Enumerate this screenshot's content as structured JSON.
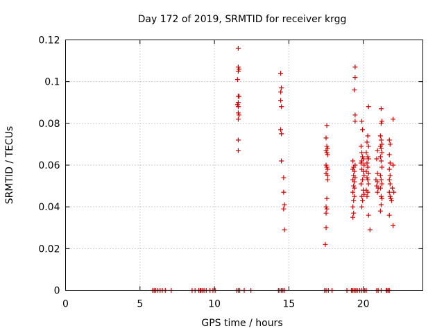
{
  "chart_data": {
    "type": "scatter",
    "title": "Day 172 of 2019, SRMTID for receiver krgg",
    "xlabel": "GPS time / hours",
    "ylabel": "SRMTID / TECUs",
    "xlim": [
      0,
      24
    ],
    "ylim": [
      0,
      0.12
    ],
    "xticks": [
      0,
      5,
      10,
      15,
      20
    ],
    "xtick_labels": [
      "0",
      "5",
      "10",
      "15",
      "20"
    ],
    "yticks": [
      0,
      0.02,
      0.04,
      0.06,
      0.08,
      0.1,
      0.12
    ],
    "ytick_labels": [
      "0",
      "0.02",
      "0.04",
      "0.06",
      "0.08",
      "0.1",
      "0.12"
    ],
    "grid": true,
    "marker": "+",
    "series": [
      {
        "name": "SRMTID",
        "color": "#cc0000",
        "points": [
          [
            11.6,
            0.116
          ],
          [
            11.6,
            0.107
          ],
          [
            11.65,
            0.106
          ],
          [
            11.6,
            0.105
          ],
          [
            11.55,
            0.101
          ],
          [
            11.6,
            0.093
          ],
          [
            11.65,
            0.093
          ],
          [
            11.6,
            0.09
          ],
          [
            11.55,
            0.089
          ],
          [
            11.6,
            0.088
          ],
          [
            11.6,
            0.085
          ],
          [
            11.65,
            0.084
          ],
          [
            11.6,
            0.082
          ],
          [
            11.6,
            0.072
          ],
          [
            11.6,
            0.067
          ],
          [
            14.45,
            0.104
          ],
          [
            14.5,
            0.097
          ],
          [
            14.45,
            0.095
          ],
          [
            14.45,
            0.091
          ],
          [
            14.5,
            0.088
          ],
          [
            14.45,
            0.077
          ],
          [
            14.5,
            0.075
          ],
          [
            14.5,
            0.062
          ],
          [
            14.65,
            0.054
          ],
          [
            14.65,
            0.047
          ],
          [
            14.7,
            0.041
          ],
          [
            14.65,
            0.039
          ],
          [
            14.7,
            0.029
          ],
          [
            17.55,
            0.079
          ],
          [
            17.5,
            0.073
          ],
          [
            17.55,
            0.069
          ],
          [
            17.6,
            0.068
          ],
          [
            17.5,
            0.067
          ],
          [
            17.55,
            0.066
          ],
          [
            17.6,
            0.065
          ],
          [
            17.5,
            0.06
          ],
          [
            17.55,
            0.059
          ],
          [
            17.6,
            0.058
          ],
          [
            17.5,
            0.056
          ],
          [
            17.6,
            0.055
          ],
          [
            17.55,
            0.044
          ],
          [
            17.5,
            0.04
          ],
          [
            17.55,
            0.039
          ],
          [
            17.5,
            0.037
          ],
          [
            17.5,
            0.03
          ],
          [
            17.45,
            0.022
          ],
          [
            17.6,
            0.053
          ],
          [
            19.45,
            0.107
          ],
          [
            19.45,
            0.102
          ],
          [
            19.4,
            0.096
          ],
          [
            19.45,
            0.084
          ],
          [
            19.45,
            0.081
          ],
          [
            19.3,
            0.062
          ],
          [
            19.45,
            0.06
          ],
          [
            19.35,
            0.059
          ],
          [
            19.3,
            0.058
          ],
          [
            19.4,
            0.057
          ],
          [
            19.35,
            0.055
          ],
          [
            19.45,
            0.054
          ],
          [
            19.3,
            0.053
          ],
          [
            19.4,
            0.052
          ],
          [
            19.35,
            0.05
          ],
          [
            19.4,
            0.049
          ],
          [
            19.3,
            0.047
          ],
          [
            19.4,
            0.045
          ],
          [
            19.35,
            0.043
          ],
          [
            19.3,
            0.04
          ],
          [
            19.35,
            0.037
          ],
          [
            19.3,
            0.035
          ],
          [
            19.9,
            0.081
          ],
          [
            19.95,
            0.077
          ],
          [
            19.85,
            0.069
          ],
          [
            19.9,
            0.066
          ],
          [
            19.95,
            0.064
          ],
          [
            20.0,
            0.063
          ],
          [
            19.9,
            0.062
          ],
          [
            19.85,
            0.061
          ],
          [
            20.05,
            0.06
          ],
          [
            19.9,
            0.058
          ],
          [
            20.0,
            0.057
          ],
          [
            20.05,
            0.055
          ],
          [
            19.95,
            0.053
          ],
          [
            19.85,
            0.051
          ],
          [
            20.0,
            0.048
          ],
          [
            20.05,
            0.046
          ],
          [
            19.9,
            0.045
          ],
          [
            19.95,
            0.043
          ],
          [
            19.9,
            0.04
          ],
          [
            20.35,
            0.088
          ],
          [
            20.3,
            0.074
          ],
          [
            20.25,
            0.071
          ],
          [
            20.35,
            0.069
          ],
          [
            20.2,
            0.066
          ],
          [
            20.3,
            0.064
          ],
          [
            20.35,
            0.063
          ],
          [
            20.25,
            0.061
          ],
          [
            20.3,
            0.059
          ],
          [
            20.2,
            0.057
          ],
          [
            20.35,
            0.056
          ],
          [
            20.25,
            0.054
          ],
          [
            20.3,
            0.053
          ],
          [
            20.35,
            0.051
          ],
          [
            20.2,
            0.048
          ],
          [
            20.3,
            0.047
          ],
          [
            20.25,
            0.045
          ],
          [
            20.35,
            0.036
          ],
          [
            20.45,
            0.029
          ],
          [
            20.95,
            0.067
          ],
          [
            20.9,
            0.063
          ],
          [
            20.95,
            0.056
          ],
          [
            20.85,
            0.053
          ],
          [
            20.95,
            0.052
          ],
          [
            20.9,
            0.05
          ],
          [
            21.0,
            0.049
          ],
          [
            20.95,
            0.047
          ],
          [
            21.2,
            0.087
          ],
          [
            21.25,
            0.081
          ],
          [
            21.2,
            0.08
          ],
          [
            21.15,
            0.074
          ],
          [
            21.2,
            0.072
          ],
          [
            21.25,
            0.07
          ],
          [
            21.15,
            0.069
          ],
          [
            21.2,
            0.068
          ],
          [
            21.25,
            0.066
          ],
          [
            21.15,
            0.064
          ],
          [
            21.2,
            0.062
          ],
          [
            21.25,
            0.059
          ],
          [
            21.15,
            0.055
          ],
          [
            21.2,
            0.053
          ],
          [
            21.25,
            0.051
          ],
          [
            21.15,
            0.049
          ],
          [
            21.2,
            0.045
          ],
          [
            21.25,
            0.044
          ],
          [
            21.2,
            0.041
          ],
          [
            21.15,
            0.038
          ],
          [
            21.75,
            0.072
          ],
          [
            21.8,
            0.07
          ],
          [
            21.75,
            0.065
          ],
          [
            21.8,
            0.061
          ],
          [
            21.75,
            0.058
          ],
          [
            21.8,
            0.055
          ],
          [
            21.75,
            0.053
          ],
          [
            21.8,
            0.051
          ],
          [
            21.75,
            0.047
          ],
          [
            21.8,
            0.045
          ],
          [
            21.85,
            0.044
          ],
          [
            21.75,
            0.036
          ],
          [
            22.0,
            0.082
          ],
          [
            22.0,
            0.06
          ],
          [
            21.95,
            0.049
          ],
          [
            22.05,
            0.047
          ],
          [
            21.9,
            0.043
          ],
          [
            22.0,
            0.031
          ]
        ],
        "zero_x": [
          5.85,
          5.95,
          6.05,
          6.2,
          6.35,
          6.5,
          6.7,
          7.1,
          8.5,
          8.7,
          8.95,
          9.05,
          9.1,
          9.2,
          9.3,
          9.45,
          9.7,
          9.9,
          10.05,
          11.5,
          11.6,
          11.7,
          12.0,
          12.45,
          14.3,
          14.4,
          14.5,
          14.6,
          14.7,
          17.4,
          17.5,
          17.65,
          17.9,
          18.9,
          19.2,
          19.3,
          19.4,
          19.5,
          19.6,
          19.75,
          19.9,
          20.0,
          20.1,
          20.2,
          20.9,
          21.0,
          21.2,
          21.55,
          21.6,
          21.7,
          21.75
        ]
      }
    ]
  }
}
